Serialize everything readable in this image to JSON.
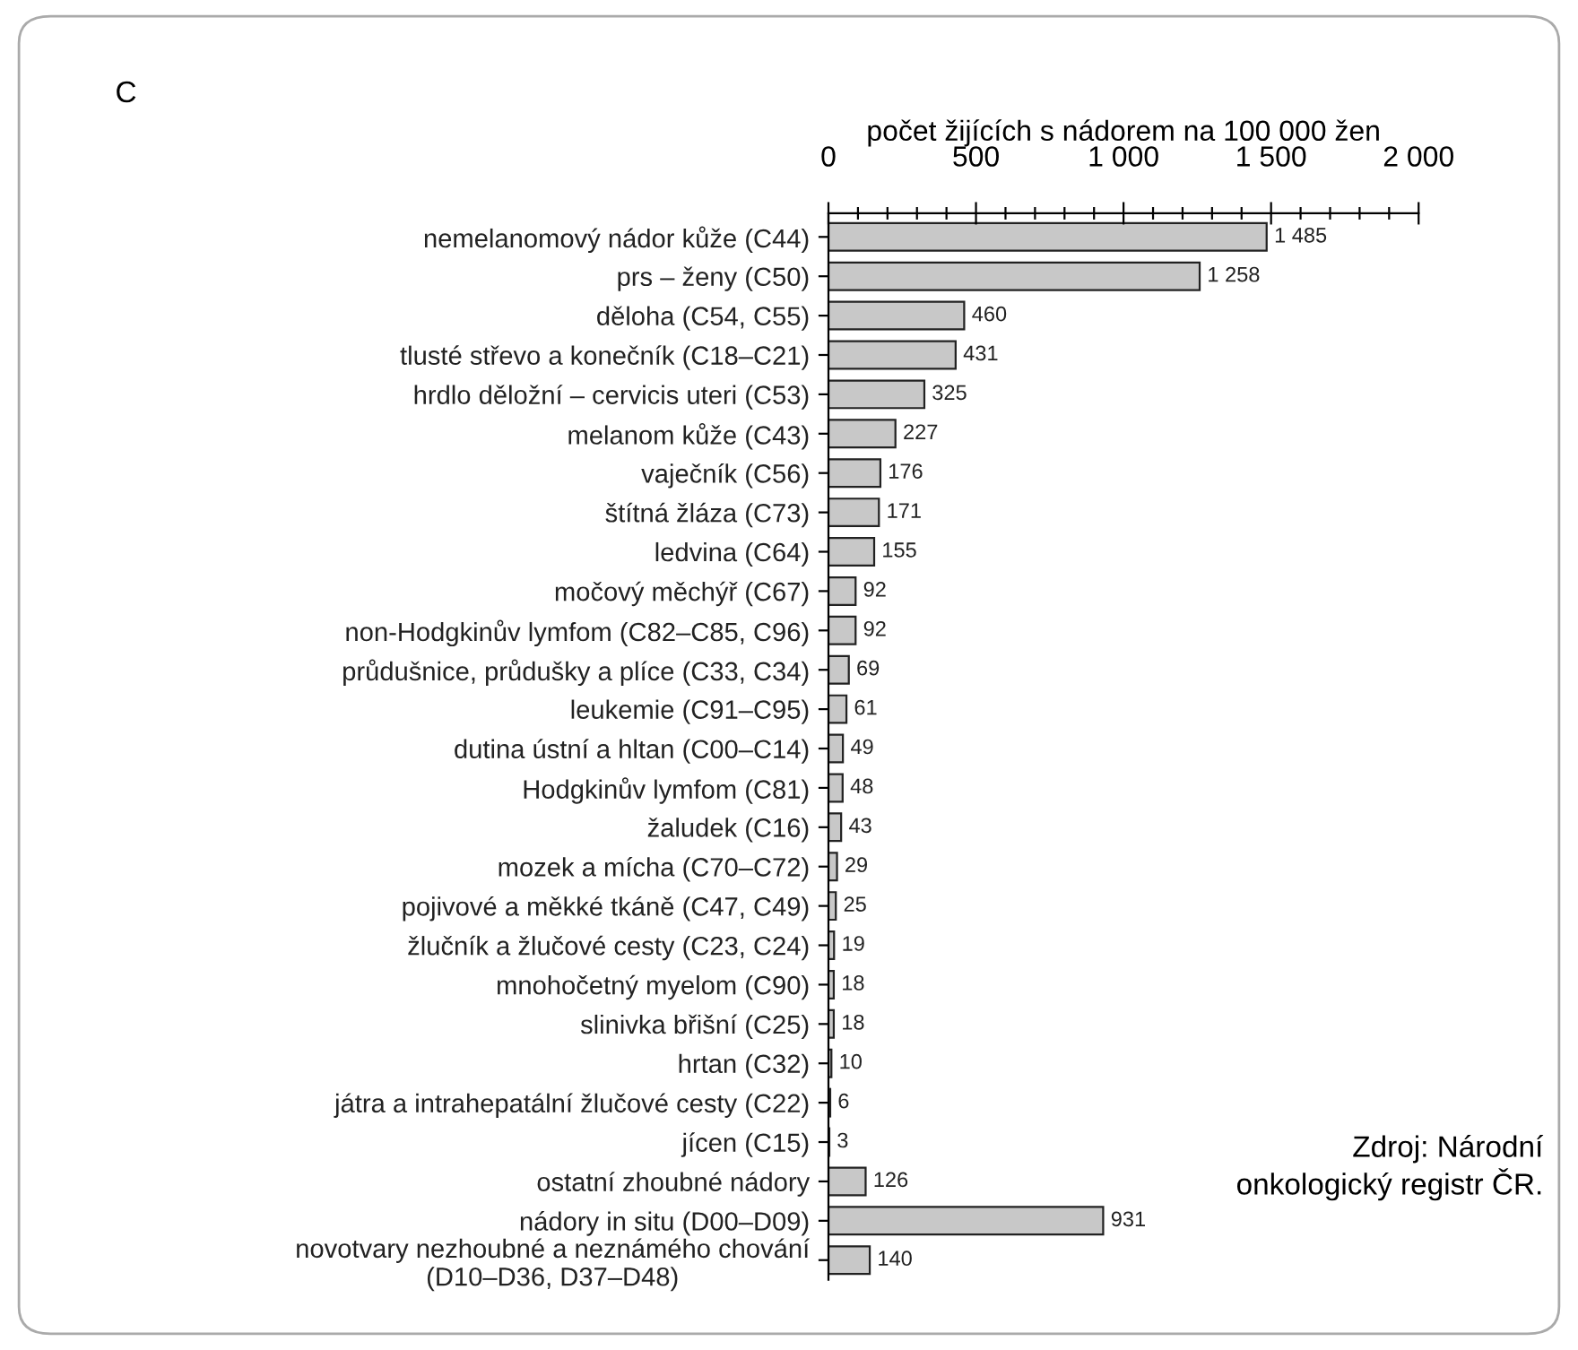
{
  "chart_data": {
    "type": "bar",
    "orientation": "horizontal",
    "xlabel": "počet žijících s nádorem na 100 000 žen",
    "categories": [
      "nemelanomový nádor kůže (C44)",
      "prs – ženy (C50)",
      "děloha (C54, C55)",
      "tlusté střevo a konečník (C18–C21)",
      "hrdlo děložní – cervicis uteri (C53)",
      "melanom kůže (C43)",
      "vaječník (C56)",
      "štítná žláza (C73)",
      "ledvina (C64)",
      "močový měchýř (C67)",
      "non-Hodgkinův lymfom (C82–C85, C96)",
      "průdušnice, průdušky a plíce (C33, C34)",
      "leukemie (C91–C95)",
      "dutina ústní a hltan (C00–C14)",
      "Hodgkinův lymfom (C81)",
      "žaludek (C16)",
      "mozek a mícha (C70–C72)",
      "pojivové a měkké tkáně (C47, C49)",
      "žlučník a žlučové cesty (C23, C24)",
      "mnohočetný myelom (C90)",
      "slinivka břišní (C25)",
      "hrtan (C32)",
      "játra a intrahepatální žlučové cesty (C22)",
      "jícen (C15)",
      "ostatní zhoubné nádory",
      "nádory in situ (D00–D09)",
      "novotvary nezhoubné a neznámého chování\n(D10–D36, D37–D48)"
    ],
    "values": [
      1485,
      1258,
      460,
      431,
      325,
      227,
      176,
      171,
      155,
      92,
      92,
      69,
      61,
      49,
      48,
      43,
      29,
      25,
      19,
      18,
      18,
      10,
      6,
      3,
      126,
      931,
      140
    ],
    "value_labels": [
      "1 485",
      "1 258",
      "460",
      "431",
      "325",
      "227",
      "176",
      "171",
      "155",
      "92",
      "92",
      "69",
      "61",
      "49",
      "48",
      "43",
      "29",
      "25",
      "19",
      "18",
      "18",
      "10",
      "6",
      "3",
      "126",
      "931",
      "140"
    ],
    "color": "#c8c8c8",
    "xlim": [
      0,
      2000
    ],
    "xticks": [
      0,
      {
        "value": 100,
        "label": null
      },
      {
        "value": 200,
        "label": null
      },
      {
        "value": 300,
        "label": null
      },
      {
        "value": 400,
        "label": null
      },
      {
        "value": 500,
        "label": "500"
      },
      {
        "value": 600,
        "label": null
      },
      {
        "value": 700,
        "label": null
      },
      {
        "value": 800,
        "label": null
      },
      {
        "value": 900,
        "label": null
      },
      {
        "value": 1000,
        "label": "1 000"
      },
      {
        "value": 1100,
        "label": null
      },
      {
        "value": 1200,
        "label": null
      },
      {
        "value": 1300,
        "label": null
      },
      {
        "value": 1400,
        "label": null
      },
      {
        "value": 1500,
        "label": "1 500"
      },
      {
        "value": 1600,
        "label": null
      },
      {
        "value": 1700,
        "label": null
      },
      {
        "value": 1800,
        "label": null
      },
      {
        "value": 1900,
        "label": null
      },
      {
        "value": 2000,
        "label": "2 000"
      }
    ],
    "grid": false,
    "legend": false,
    "annotations": [
      "C",
      "Zdroj: Národní\nonkologický registr ČR."
    ]
  }
}
